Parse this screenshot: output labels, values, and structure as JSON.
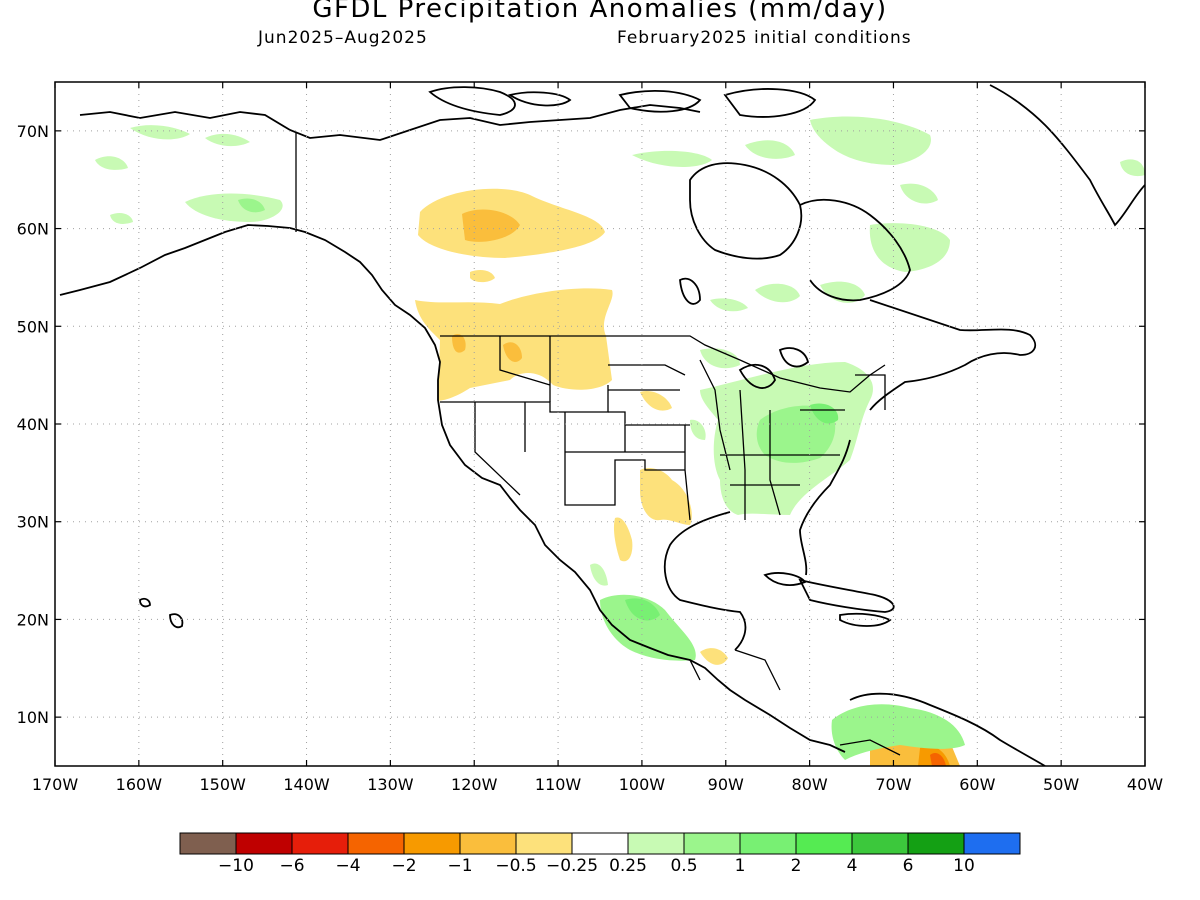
{
  "title": "GFDL Precipitation Anomalies (mm/day)",
  "period": "Jun2025–Aug2025",
  "initial_conditions": "February2025 initial conditions",
  "map": {
    "lon_range": [
      -170,
      -40
    ],
    "lat_range": [
      5,
      75
    ],
    "lon_ticks": [
      "170W",
      "160W",
      "150W",
      "140W",
      "130W",
      "120W",
      "110W",
      "100W",
      "90W",
      "80W",
      "70W",
      "60W",
      "50W",
      "40W"
    ],
    "lat_ticks": [
      "10N",
      "20N",
      "30N",
      "40N",
      "50N",
      "60N",
      "70N"
    ]
  },
  "colorbar": {
    "colors": [
      "#7f5f4f",
      "#bf0000",
      "#e61e0a",
      "#f56400",
      "#f79a00",
      "#fabe3c",
      "#fde17b",
      "#ffffff",
      "#c8fab4",
      "#9bf58c",
      "#78f073",
      "#55eb52",
      "#3cc83c",
      "#14a014",
      "#1e6ef0"
    ],
    "labels": [
      "−10",
      "−6",
      "−4",
      "−2",
      "−1",
      "−0.5",
      "−0.25",
      "0.25",
      "0.5",
      "1",
      "2",
      "4",
      "6",
      "10"
    ]
  }
}
